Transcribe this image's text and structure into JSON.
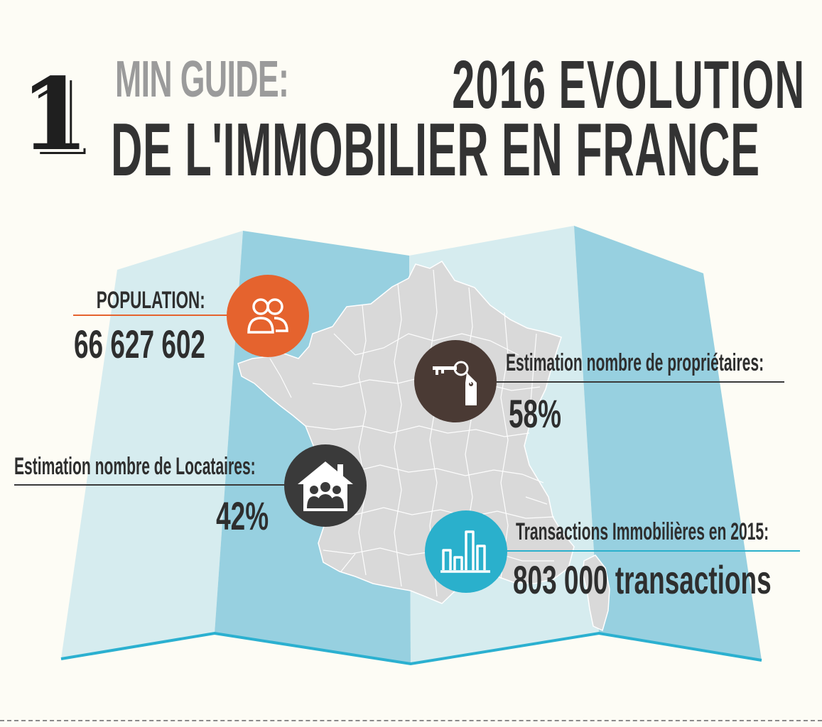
{
  "header": {
    "number": "1",
    "subtitle": "MIN GUIDE:",
    "year_title": "2016 EVOLUTION",
    "main_title": "DE L'IMMOBILIER EN FRANCE"
  },
  "stats": {
    "population": {
      "label": "POPULATION:",
      "value": "66 627 602",
      "icon": "people-icon",
      "color": "#e5632e"
    },
    "owners": {
      "label": "Estimation nombre de propriétaires:",
      "value": "58%",
      "icon": "key-tag-icon",
      "color": "#4a3a34"
    },
    "tenants": {
      "label": "Estimation nombre de Locataires:",
      "value": "42%",
      "icon": "house-family-icon",
      "color": "#3a3a3a"
    },
    "transactions": {
      "label": "Transactions Immobilières en 2015:",
      "value": "803 000 transactions",
      "icon": "bar-chart-icon",
      "color": "#2ab0cc"
    }
  },
  "colors": {
    "map_light": "#d6ecef",
    "map_dark": "#97d0e0",
    "map_edge": "#2bb0d0",
    "france": "#d9d9d9"
  }
}
